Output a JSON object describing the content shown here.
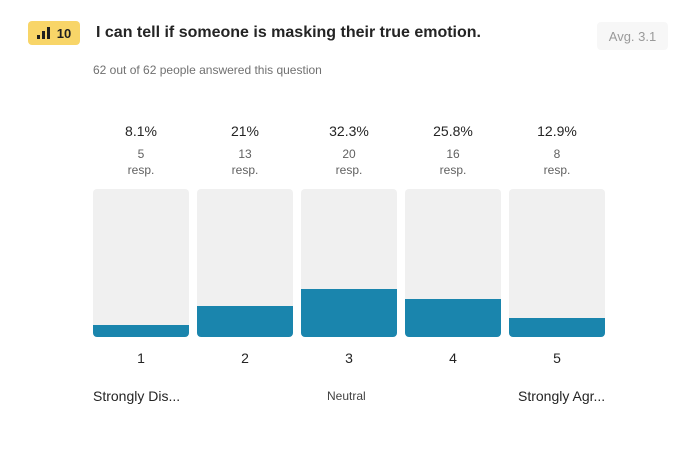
{
  "header": {
    "badge_number": "10",
    "question": "I can tell if someone is masking their true emotion.",
    "avg": "Avg. 3.1",
    "answered": "62 out of 62 people answered this question"
  },
  "colors": {
    "bar": "#1a85ad",
    "track": "#f0f0f0",
    "badge": "#f8d568"
  },
  "chart_data": {
    "type": "bar",
    "categories": [
      "1",
      "2",
      "3",
      "4",
      "5"
    ],
    "values": [
      5,
      13,
      20,
      16,
      8
    ],
    "percentages": [
      "8.1%",
      "21%",
      "32.3%",
      "25.8%",
      "12.9%"
    ],
    "resp_unit": "resp.",
    "ylim": [
      0,
      62
    ],
    "anchors": {
      "low": "Strongly Dis...",
      "mid": "Neutral",
      "high": "Strongly Agr..."
    }
  }
}
